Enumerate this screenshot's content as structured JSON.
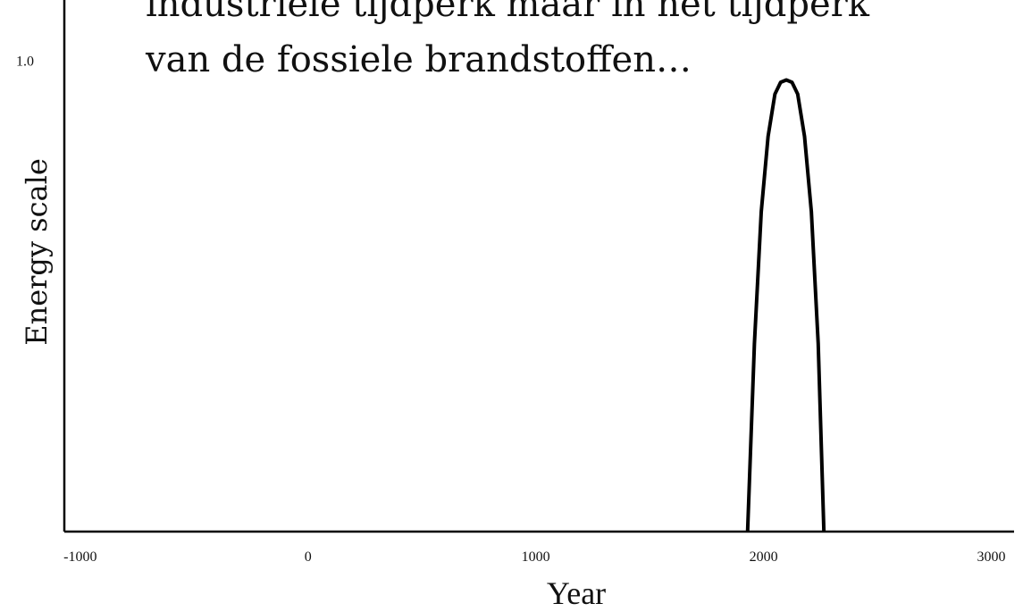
{
  "chart_data": {
    "type": "line",
    "annotations": [
      "industriële tijdperk maar in het tijdperk",
      "van de fossiele brandstoffen…"
    ],
    "xlabel": "Year",
    "ylabel": "Energy scale",
    "x": [
      1930,
      1960,
      1990,
      2020,
      2050,
      2075,
      2100,
      2125,
      2150,
      2180,
      2210,
      2240,
      2265
    ],
    "series": [
      {
        "name": "Energy",
        "color": "#000000",
        "values": [
          0,
          0.4,
          0.68,
          0.84,
          0.93,
          0.955,
          0.96,
          0.955,
          0.93,
          0.84,
          0.68,
          0.4,
          0
        ]
      }
    ],
    "xlim": [
      -1070,
      3100
    ],
    "xticks": [
      -1000,
      0,
      1000,
      2000,
      3000
    ],
    "ylim": [
      0,
      1.13
    ],
    "yticks": [
      {
        "value": 1.0,
        "label": "1.0"
      }
    ],
    "grid": false
  }
}
